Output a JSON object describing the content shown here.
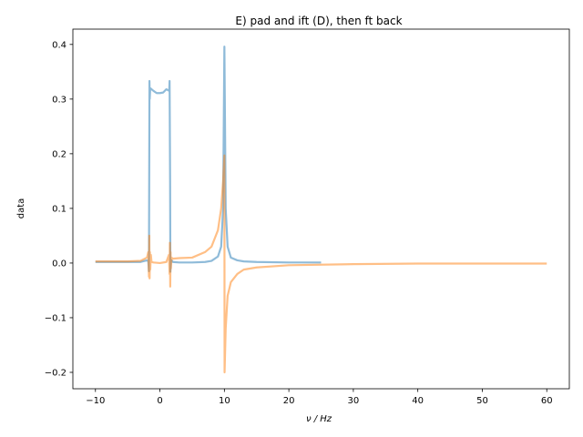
{
  "chart_data": {
    "type": "line",
    "title": "E) pad and ift (D), then ft back",
    "xlabel": "ν / Hz",
    "ylabel": "data",
    "xlim": [
      -13.5,
      63.5
    ],
    "ylim": [
      -0.23,
      0.428
    ],
    "xticks": [
      -10,
      0,
      10,
      20,
      30,
      40,
      50,
      60
    ],
    "yticks": [
      -0.2,
      -0.1,
      0.0,
      0.1,
      0.2,
      0.3,
      0.4
    ],
    "xtick_labels": [
      "−10",
      "0",
      "10",
      "20",
      "30",
      "40",
      "50",
      "60"
    ],
    "ytick_labels": [
      "−0.2",
      "−0.1",
      "0.0",
      "0.1",
      "0.2",
      "0.3",
      "0.4"
    ],
    "grid": false,
    "colors": {
      "series1": "#1f77b4",
      "series2": "#ff7f0e"
    },
    "series": [
      {
        "x": [
          -10,
          -5,
          -3,
          -2,
          -1.8,
          -1.7,
          -1.62,
          -1.58,
          -1.5,
          -1.0,
          -0.5,
          0.0,
          0.5,
          1.0,
          1.45,
          1.5,
          1.58,
          1.62,
          1.7,
          1.8,
          2,
          3,
          5,
          7,
          8,
          9,
          9.5,
          9.8,
          10.0,
          10.2,
          10.5,
          11,
          12,
          13,
          15,
          20,
          25
        ],
        "values": [
          0.002,
          0.002,
          0.002,
          0.005,
          0.003,
          -0.015,
          0.333,
          0.3,
          0.32,
          0.315,
          0.311,
          0.311,
          0.312,
          0.318,
          0.315,
          0.333,
          0.15,
          -0.016,
          0.003,
          0.005,
          0.002,
          0.001,
          0.001,
          0.002,
          0.004,
          0.012,
          0.03,
          0.1,
          0.396,
          0.1,
          0.03,
          0.01,
          0.005,
          0.003,
          0.002,
          0.001,
          0.001
        ]
      },
      {
        "x": [
          -10,
          -5,
          -3,
          -2,
          -1.8,
          -1.7,
          -1.65,
          -1.6,
          -1.55,
          -1.5,
          -1.4,
          -1.3,
          -1.0,
          0.0,
          1.0,
          1.4,
          1.5,
          1.55,
          1.6,
          1.65,
          1.7,
          1.8,
          2,
          3,
          5,
          7,
          8,
          9,
          9.5,
          9.8,
          10.0,
          10.03,
          10.2,
          10.5,
          11,
          12,
          13,
          15,
          20,
          30,
          40,
          50,
          60
        ],
        "values": [
          0.003,
          0.003,
          0.004,
          0.01,
          0.02,
          -0.025,
          0.05,
          -0.028,
          0.02,
          -0.012,
          0.015,
          0.002,
          0.001,
          0.0,
          0.002,
          0.015,
          -0.02,
          0.037,
          -0.043,
          0.02,
          -0.01,
          0.01,
          0.008,
          0.009,
          0.01,
          0.02,
          0.03,
          0.06,
          0.1,
          0.15,
          0.197,
          -0.2,
          -0.12,
          -0.06,
          -0.035,
          -0.02,
          -0.012,
          -0.008,
          -0.004,
          -0.002,
          -0.001,
          -0.001,
          -0.001
        ]
      }
    ]
  }
}
